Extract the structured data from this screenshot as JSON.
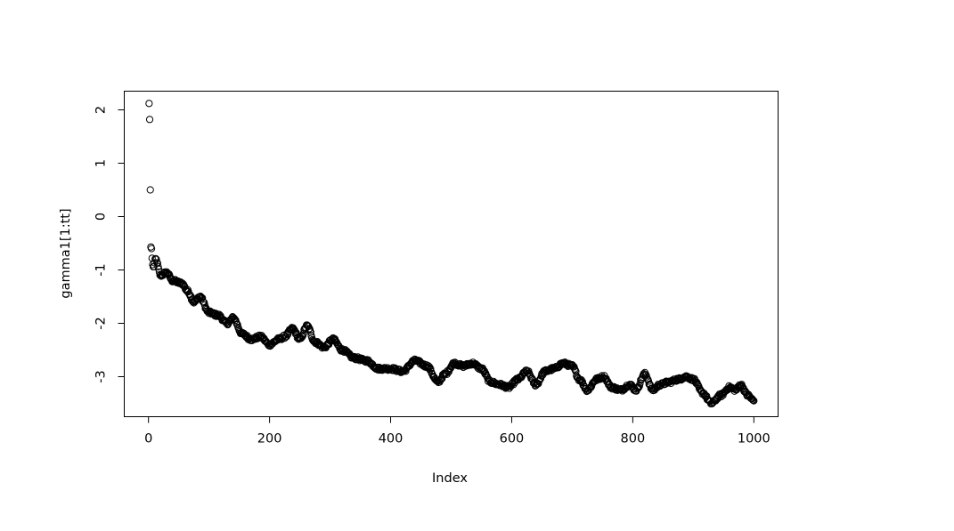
{
  "chart_data": {
    "type": "scatter",
    "title": "",
    "xlabel": "Index",
    "ylabel": "gamma1[1:tt]",
    "xlim": [
      -40,
      1040
    ],
    "ylim": [
      -3.75,
      2.35
    ],
    "x_ticks": [
      0,
      200,
      400,
      600,
      800,
      1000
    ],
    "x_tick_labels": [
      "0",
      "200",
      "400",
      "600",
      "800",
      "1000"
    ],
    "y_ticks": [
      -3,
      -2,
      -1,
      0,
      1,
      2
    ],
    "y_tick_labels": [
      "-3",
      "-2",
      "-1",
      "0",
      "1",
      "2"
    ],
    "grid": false,
    "marker": "open-circle",
    "n_points": 1000,
    "initial_points": [
      [
        1,
        2.12
      ],
      [
        2,
        1.82
      ],
      [
        3,
        0.5
      ],
      [
        4,
        -0.57
      ],
      [
        5,
        -0.6
      ],
      [
        6,
        -0.78
      ],
      [
        7,
        -0.9
      ]
    ],
    "trend_anchors": [
      [
        8,
        -0.95
      ],
      [
        12,
        -0.8
      ],
      [
        20,
        -1.1
      ],
      [
        30,
        -1.05
      ],
      [
        40,
        -1.2
      ],
      [
        55,
        -1.25
      ],
      [
        65,
        -1.4
      ],
      [
        75,
        -1.6
      ],
      [
        85,
        -1.5
      ],
      [
        100,
        -1.8
      ],
      [
        115,
        -1.85
      ],
      [
        130,
        -2.0
      ],
      [
        140,
        -1.9
      ],
      [
        155,
        -2.2
      ],
      [
        170,
        -2.3
      ],
      [
        185,
        -2.25
      ],
      [
        200,
        -2.4
      ],
      [
        215,
        -2.3
      ],
      [
        225,
        -2.25
      ],
      [
        238,
        -2.1
      ],
      [
        250,
        -2.3
      ],
      [
        262,
        -2.05
      ],
      [
        275,
        -2.35
      ],
      [
        290,
        -2.45
      ],
      [
        305,
        -2.3
      ],
      [
        320,
        -2.5
      ],
      [
        340,
        -2.65
      ],
      [
        360,
        -2.7
      ],
      [
        380,
        -2.85
      ],
      [
        400,
        -2.85
      ],
      [
        420,
        -2.9
      ],
      [
        440,
        -2.7
      ],
      [
        460,
        -2.8
      ],
      [
        478,
        -3.1
      ],
      [
        490,
        -2.95
      ],
      [
        505,
        -2.75
      ],
      [
        520,
        -2.8
      ],
      [
        535,
        -2.75
      ],
      [
        550,
        -2.85
      ],
      [
        565,
        -3.1
      ],
      [
        580,
        -3.15
      ],
      [
        595,
        -3.2
      ],
      [
        610,
        -3.05
      ],
      [
        625,
        -2.9
      ],
      [
        640,
        -3.15
      ],
      [
        655,
        -2.9
      ],
      [
        670,
        -2.85
      ],
      [
        685,
        -2.75
      ],
      [
        700,
        -2.8
      ],
      [
        712,
        -3.05
      ],
      [
        725,
        -3.25
      ],
      [
        740,
        -3.05
      ],
      [
        752,
        -3.0
      ],
      [
        765,
        -3.2
      ],
      [
        780,
        -3.25
      ],
      [
        795,
        -3.15
      ],
      [
        805,
        -3.25
      ],
      [
        820,
        -2.95
      ],
      [
        833,
        -3.25
      ],
      [
        845,
        -3.15
      ],
      [
        860,
        -3.1
      ],
      [
        875,
        -3.05
      ],
      [
        888,
        -3.0
      ],
      [
        900,
        -3.05
      ],
      [
        915,
        -3.3
      ],
      [
        930,
        -3.5
      ],
      [
        945,
        -3.35
      ],
      [
        960,
        -3.2
      ],
      [
        970,
        -3.25
      ],
      [
        978,
        -3.15
      ],
      [
        990,
        -3.35
      ],
      [
        1000,
        -3.45
      ]
    ]
  }
}
